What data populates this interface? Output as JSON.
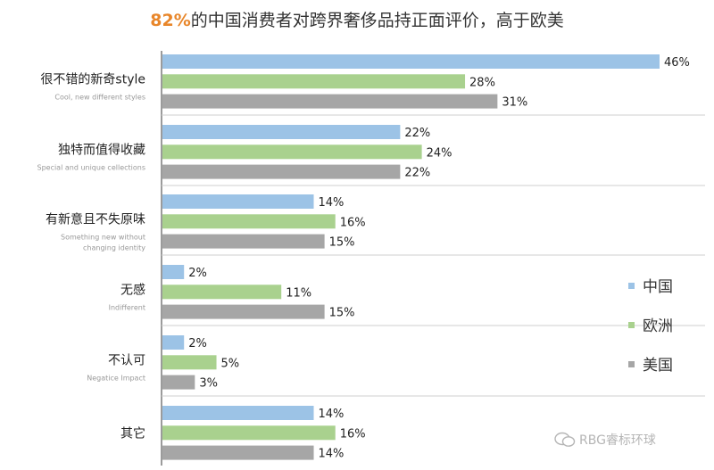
{
  "title": {
    "highlight": "82%",
    "rest": "的中国消费者对跨界奢侈品持正面评价，高于欧美"
  },
  "chart_data": {
    "type": "bar",
    "orientation": "horizontal",
    "categories": [
      {
        "cn": "很不错的新奇style",
        "en": [
          "Cool, new different styles"
        ]
      },
      {
        "cn": "独特而值得收藏",
        "en": [
          "Special and unique cellections"
        ]
      },
      {
        "cn": "有新意且不失原味",
        "en": [
          "Something new without",
          "changing identity"
        ]
      },
      {
        "cn": "无感",
        "en": [
          "Indifferent"
        ]
      },
      {
        "cn": "不认可",
        "en": [
          "Negatice Impact"
        ]
      },
      {
        "cn": "其它",
        "en": []
      }
    ],
    "series": [
      {
        "name": "中国",
        "color": "#9cc3e6",
        "values": [
          46,
          22,
          14,
          2,
          2,
          14
        ]
      },
      {
        "name": "欧洲",
        "color": "#a9d18e",
        "values": [
          28,
          24,
          16,
          11,
          5,
          16
        ]
      },
      {
        "name": "美国",
        "color": "#a6a6a6",
        "values": [
          31,
          22,
          15,
          15,
          3,
          14
        ]
      }
    ],
    "value_suffix": "%",
    "xlim": [
      0,
      46
    ],
    "grid": false,
    "legend": "right"
  },
  "watermark": "RBG睿标环球"
}
